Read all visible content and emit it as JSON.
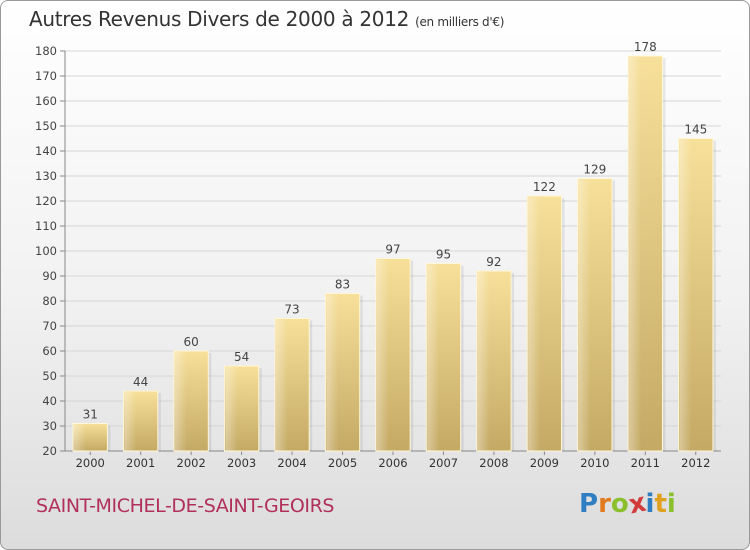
{
  "header": {
    "title": "Autres Revenus Divers de 2000 à 2012",
    "unit": "(en milliers d'€)"
  },
  "footer": {
    "commune": "SAINT-MICHEL-DE-SAINT-GEOIRS",
    "logo": {
      "letters": [
        "P",
        "r",
        "o",
        "x",
        "i",
        "t",
        "i"
      ],
      "colors": [
        "#2f7ec2",
        "#e07b20",
        "#8bbf2e",
        "#d23b3b",
        "#2f7ec2",
        "#e0a020",
        "#8bbf2e"
      ]
    }
  },
  "chart_data": {
    "type": "bar",
    "title": "Autres Revenus Divers de 2000 à 2012",
    "categories": [
      "2000",
      "2001",
      "2002",
      "2003",
      "2004",
      "2005",
      "2006",
      "2007",
      "2008",
      "2009",
      "2010",
      "2011",
      "2012"
    ],
    "values": [
      31,
      44,
      60,
      54,
      73,
      83,
      97,
      95,
      92,
      122,
      129,
      178,
      145
    ],
    "ylim": [
      20,
      180
    ],
    "yticks": [
      20,
      30,
      40,
      50,
      60,
      70,
      80,
      90,
      100,
      110,
      120,
      130,
      140,
      150,
      160,
      170,
      180
    ],
    "grid": true,
    "bar_color": "#e9cf85"
  }
}
